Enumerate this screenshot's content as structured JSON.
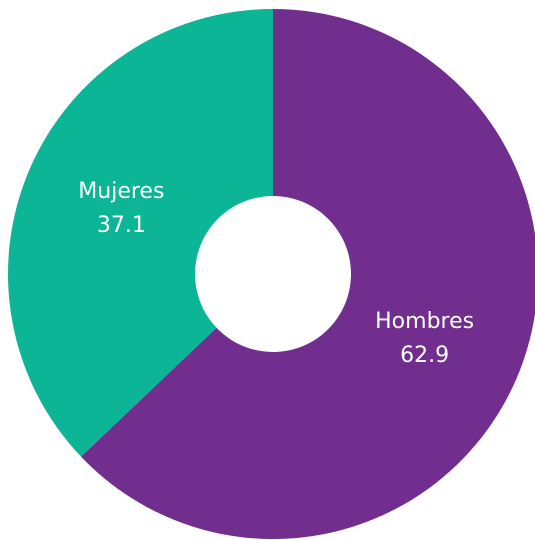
{
  "chart_data": {
    "type": "pie",
    "donut": true,
    "categories": [
      "Hombres",
      "Mujeres"
    ],
    "values": [
      62.9,
      37.1
    ],
    "colors": [
      "#722e8f",
      "#0bb596"
    ]
  }
}
